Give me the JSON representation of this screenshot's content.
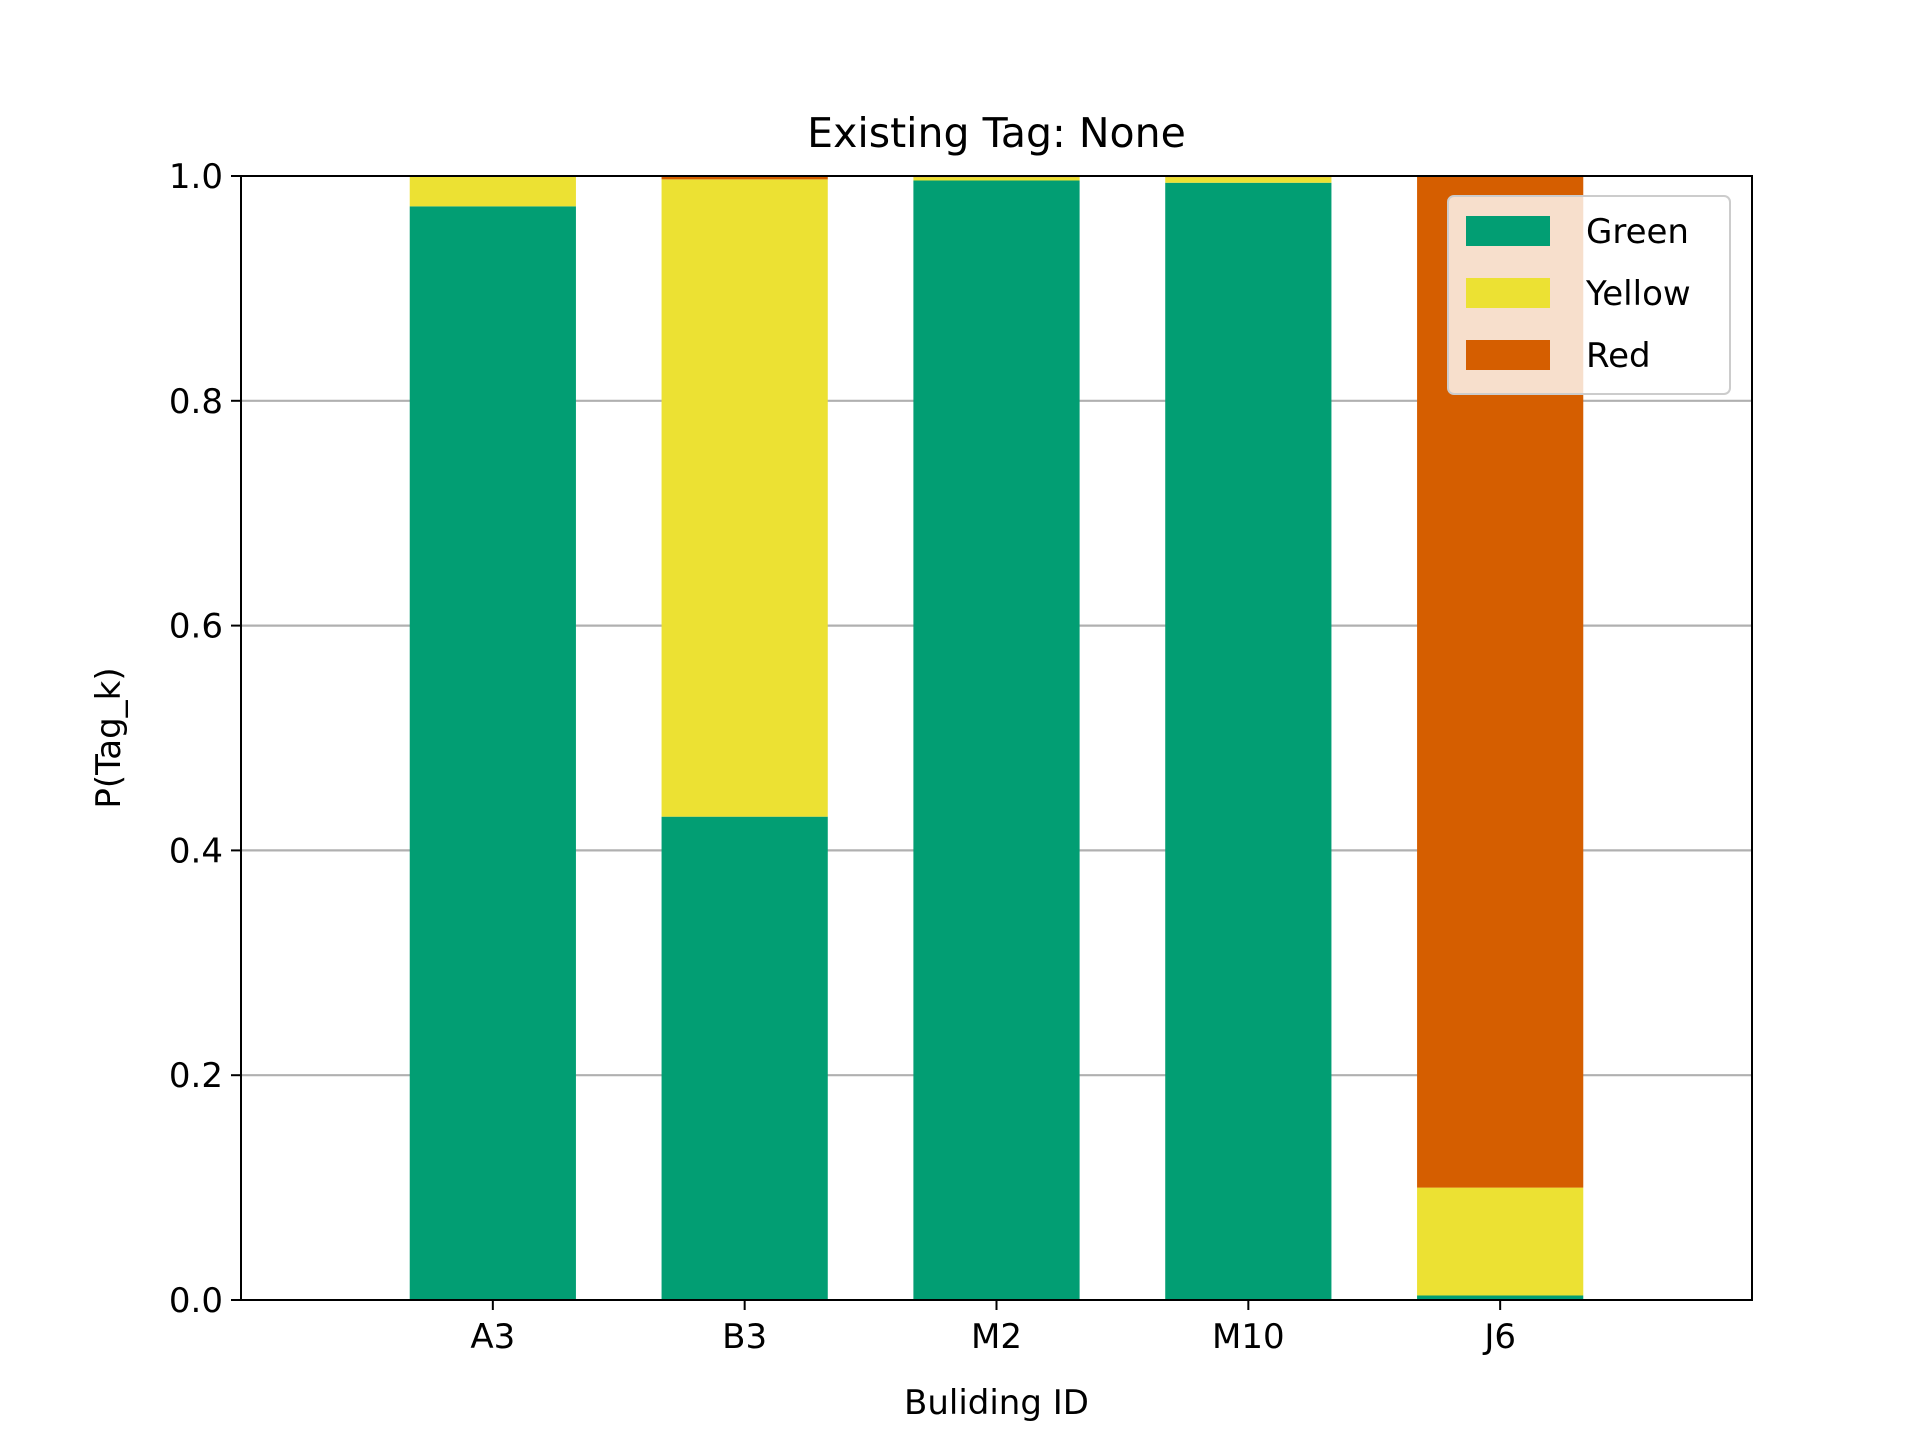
{
  "chart_data": {
    "type": "bar",
    "stacked": true,
    "title": "Existing Tag: None",
    "xlabel": "Buliding ID",
    "ylabel": "P(Tag_k)",
    "categories": [
      "A3",
      "B3",
      "M2",
      "M10",
      "J6"
    ],
    "x_positions": [
      1,
      2,
      3,
      4,
      5
    ],
    "xlim": [
      0,
      6
    ],
    "ylim": [
      0,
      1
    ],
    "yticks": [
      0.0,
      0.2,
      0.4,
      0.6,
      0.8,
      1.0
    ],
    "ytick_labels": [
      "0.0",
      "0.2",
      "0.4",
      "0.6",
      "0.8",
      "1.0"
    ],
    "grid": "y-major",
    "legend": "top-right",
    "series": [
      {
        "name": "Green",
        "color": "#029e73",
        "values": [
          0.973,
          0.43,
          0.996,
          0.994,
          0.004
        ]
      },
      {
        "name": "Yellow",
        "color": "#ece133",
        "values": [
          0.027,
          0.567,
          0.003,
          0.005,
          0.096
        ]
      },
      {
        "name": "Red",
        "color": "#d55e00",
        "values": [
          0.0,
          0.003,
          0.001,
          0.001,
          0.9
        ]
      }
    ]
  }
}
